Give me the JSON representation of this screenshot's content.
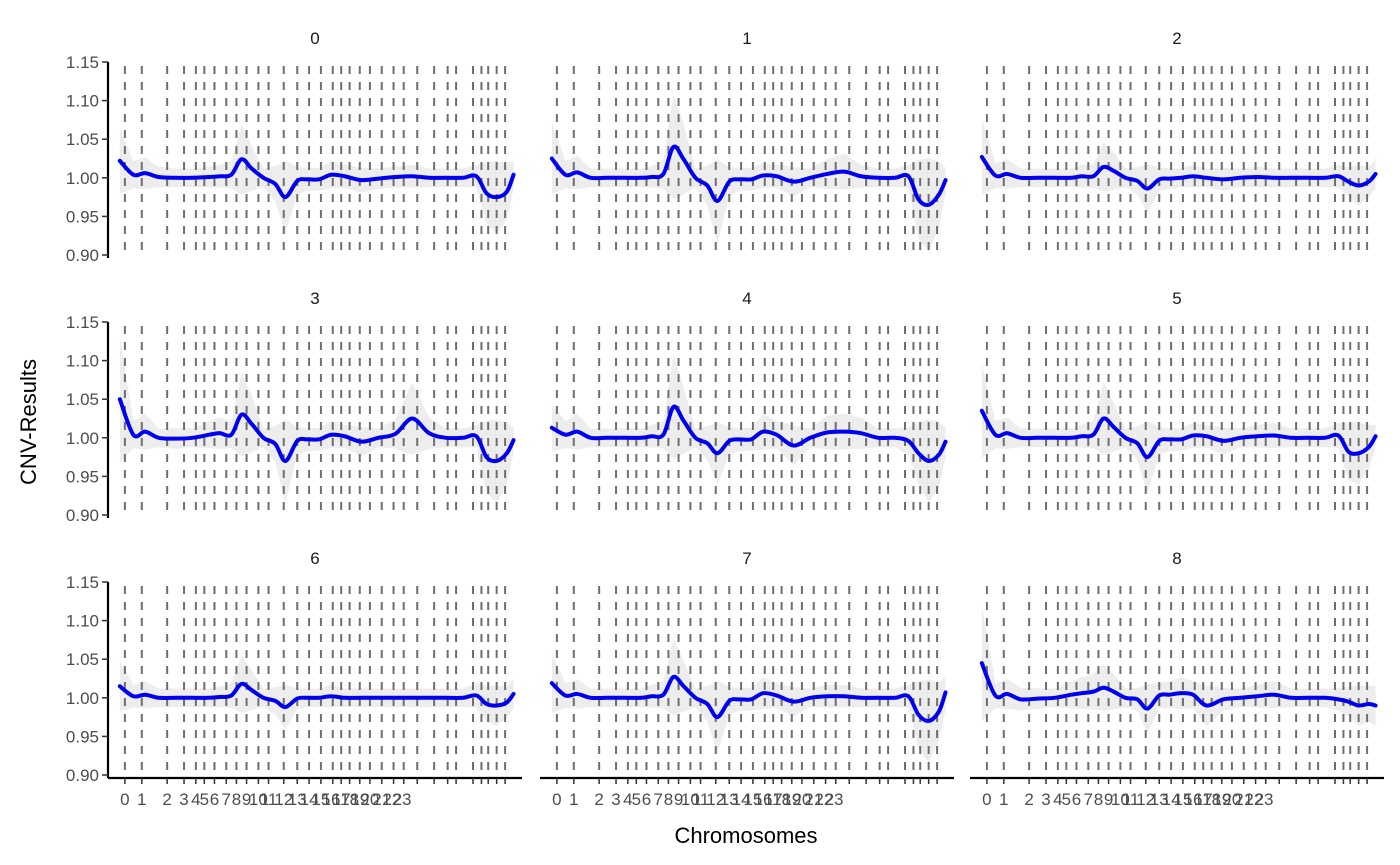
{
  "chart_data": {
    "type": "line",
    "xlabel": "Chromosomes",
    "ylabel": "CNV-Results",
    "ylim": [
      0.9,
      1.15
    ],
    "yticks": [
      0.9,
      0.95,
      1.0,
      1.05,
      1.1,
      1.15
    ],
    "ytick_labels": [
      "0.90",
      "0.95",
      "1.00",
      "1.05",
      "1.10",
      "1.15"
    ],
    "xlim": [
      -1,
      23.5
    ],
    "xtick_positions": [
      0,
      1,
      2.5,
      3.5,
      4.2,
      4.7,
      5.3,
      6,
      6.6,
      7.2,
      7.9,
      8.5,
      9.4,
      10.2,
      10.9,
      11.6,
      12.3,
      12.8,
      13.3,
      13.9,
      14.5,
      15.2,
      15.9,
      16.5,
      17.3,
      18.3,
      19.1,
      19.6,
      20.6,
      21.1,
      21.5,
      22.0,
      22.5
    ],
    "xtick_labels": [
      "0",
      "1",
      "2",
      "3",
      "4",
      "5",
      "6",
      "7",
      "8",
      "9",
      "10",
      "11",
      "12",
      "13",
      "14",
      "15",
      "16",
      "17",
      "18",
      "19",
      "20",
      "21",
      "22",
      "23"
    ],
    "xtick_label_positions": [
      0,
      1,
      2.5,
      3.5,
      4.2,
      4.7,
      5.3,
      6,
      6.6,
      7.2,
      7.9,
      8.5,
      9.4,
      10.2,
      10.9,
      11.6,
      12.2,
      12.8,
      13.3,
      13.9,
      14.5,
      15.2,
      15.8,
      16.4
    ],
    "vline_x": [
      0,
      1,
      2.5,
      3.5,
      4.2,
      4.7,
      5.3,
      6,
      6.6,
      7.2,
      7.9,
      8.5,
      9.4,
      10.2,
      10.9,
      11.6,
      12.3,
      12.8,
      13.3,
      13.9,
      14.5,
      15.2,
      15.9,
      16.5,
      17.3,
      18.3,
      19.1,
      19.6,
      20.6,
      21.1,
      21.5,
      22.0,
      22.5
    ],
    "colors": {
      "line": "#0000ee",
      "vline": "#6e6e6e",
      "band": "#bdbdbd",
      "axis": "#000000"
    },
    "panels": [
      {
        "title": "0",
        "x": [
          -0.3,
          0.5,
          1.2,
          2,
          3,
          4,
          5,
          5.6,
          6.3,
          6.9,
          7.5,
          8.2,
          8.9,
          9.5,
          10.2,
          10.8,
          11.5,
          12.2,
          13,
          14,
          15,
          16,
          17,
          18,
          19,
          20,
          20.8,
          21.4,
          22,
          22.6,
          23
        ],
        "y": [
          1.022,
          1.004,
          1.006,
          1.001,
          1.0,
          1.0,
          1.001,
          1.002,
          1.004,
          1.024,
          1.012,
          1.0,
          0.992,
          0.975,
          0.996,
          0.998,
          0.998,
          1.004,
          1.002,
          0.997,
          0.999,
          1.001,
          1.002,
          1.0,
          1.0,
          1.0,
          1.002,
          0.98,
          0.975,
          0.982,
          1.004
        ]
      },
      {
        "title": "1",
        "x": [
          -0.3,
          0.5,
          1.2,
          2,
          3,
          4,
          5,
          5.6,
          6.3,
          6.9,
          7.5,
          8.2,
          8.9,
          9.5,
          10.2,
          10.8,
          11.5,
          12.2,
          13,
          14,
          15,
          16,
          17,
          18,
          19,
          20,
          20.8,
          21.4,
          22,
          22.6,
          23
        ],
        "y": [
          1.025,
          1.004,
          1.007,
          1.0,
          1.0,
          1.0,
          1.0,
          1.001,
          1.005,
          1.04,
          1.024,
          1.0,
          0.99,
          0.97,
          0.995,
          0.998,
          0.998,
          1.003,
          1.002,
          0.995,
          1.0,
          1.005,
          1.008,
          1.002,
          1.0,
          1.0,
          1.002,
          0.972,
          0.965,
          0.978,
          0.997
        ]
      },
      {
        "title": "2",
        "x": [
          -0.3,
          0.5,
          1.2,
          2,
          3,
          4,
          5,
          5.6,
          6.3,
          6.9,
          7.5,
          8.2,
          8.9,
          9.5,
          10.2,
          10.8,
          11.5,
          12.2,
          13,
          14,
          15,
          16,
          17,
          18,
          19,
          20,
          20.8,
          21.4,
          22,
          22.6,
          23
        ],
        "y": [
          1.027,
          1.003,
          1.005,
          1.0,
          1.0,
          1.0,
          1.0,
          1.002,
          1.002,
          1.014,
          1.009,
          1.0,
          0.996,
          0.986,
          0.998,
          0.999,
          1.0,
          1.002,
          1.0,
          0.998,
          1.0,
          1.001,
          1.0,
          1.0,
          1.0,
          1.0,
          1.002,
          0.995,
          0.99,
          0.995,
          1.005
        ]
      },
      {
        "title": "3",
        "x": [
          -0.3,
          0.5,
          1.2,
          2,
          3,
          4,
          5,
          5.6,
          6.3,
          6.9,
          7.5,
          8.2,
          8.9,
          9.5,
          10.2,
          10.8,
          11.5,
          12.2,
          13,
          14,
          15,
          16,
          17,
          18,
          19,
          20,
          20.8,
          21.4,
          22,
          22.6,
          23
        ],
        "y": [
          1.05,
          1.004,
          1.008,
          1.0,
          0.999,
          1.0,
          1.004,
          1.006,
          1.004,
          1.03,
          1.018,
          1.0,
          0.992,
          0.97,
          0.996,
          0.998,
          0.998,
          1.004,
          1.002,
          0.995,
          1.0,
          1.005,
          1.025,
          1.006,
          1.0,
          1.0,
          1.002,
          0.975,
          0.97,
          0.98,
          0.997
        ]
      },
      {
        "title": "4",
        "x": [
          -0.3,
          0.5,
          1.2,
          2,
          3,
          4,
          5,
          5.6,
          6.3,
          6.9,
          7.5,
          8.2,
          8.9,
          9.5,
          10.2,
          10.8,
          11.5,
          12.2,
          13,
          14,
          15,
          16,
          17,
          18,
          19,
          20,
          20.8,
          21.4,
          22,
          22.6,
          23
        ],
        "y": [
          1.013,
          1.004,
          1.008,
          1.0,
          1.0,
          1.0,
          1.0,
          1.002,
          1.004,
          1.04,
          1.022,
          1.0,
          0.993,
          0.98,
          0.996,
          0.998,
          0.998,
          1.008,
          1.004,
          0.99,
          1.0,
          1.007,
          1.008,
          1.006,
          1.0,
          1.0,
          0.996,
          0.98,
          0.97,
          0.978,
          0.995
        ]
      },
      {
        "title": "5",
        "x": [
          -0.3,
          0.5,
          1.2,
          2,
          3,
          4,
          5,
          5.6,
          6.3,
          6.9,
          7.5,
          8.2,
          8.9,
          9.5,
          10.2,
          10.8,
          11.5,
          12.2,
          13,
          14,
          15,
          16,
          17,
          18,
          19,
          20,
          20.8,
          21.4,
          22,
          22.6,
          23
        ],
        "y": [
          1.035,
          1.004,
          1.006,
          1.0,
          1.0,
          1.0,
          1.0,
          1.002,
          1.004,
          1.025,
          1.014,
          1.0,
          0.993,
          0.975,
          0.996,
          0.998,
          0.998,
          1.003,
          1.002,
          0.996,
          1.0,
          1.002,
          1.003,
          1.0,
          1.0,
          1.0,
          1.003,
          0.982,
          0.98,
          0.988,
          1.002
        ]
      },
      {
        "title": "6",
        "x": [
          -0.3,
          0.5,
          1.2,
          2,
          3,
          4,
          5,
          5.6,
          6.3,
          6.9,
          7.5,
          8.2,
          8.9,
          9.5,
          10.2,
          10.8,
          11.5,
          12.2,
          13,
          14,
          15,
          16,
          17,
          18,
          19,
          20,
          20.8,
          21.4,
          22,
          22.6,
          23
        ],
        "y": [
          1.015,
          1.002,
          1.004,
          1.0,
          1.0,
          1.0,
          1.0,
          1.001,
          1.003,
          1.018,
          1.01,
          1.0,
          0.996,
          0.988,
          0.999,
          1.0,
          1.0,
          1.002,
          1.0,
          1.0,
          1.0,
          1.0,
          1.0,
          1.0,
          1.0,
          1.0,
          1.003,
          0.992,
          0.99,
          0.994,
          1.005
        ]
      },
      {
        "title": "7",
        "x": [
          -0.3,
          0.5,
          1.2,
          2,
          3,
          4,
          5,
          5.6,
          6.3,
          6.9,
          7.5,
          8.2,
          8.9,
          9.5,
          10.2,
          10.8,
          11.5,
          12.2,
          13,
          14,
          15,
          16,
          17,
          18,
          19,
          20,
          20.8,
          21.4,
          22,
          22.6,
          23
        ],
        "y": [
          1.019,
          1.003,
          1.005,
          1.0,
          1.0,
          1.0,
          1.0,
          1.002,
          1.004,
          1.027,
          1.015,
          1.0,
          0.992,
          0.975,
          0.996,
          0.998,
          0.998,
          1.006,
          1.003,
          0.995,
          1.0,
          1.002,
          1.002,
          1.0,
          1.0,
          1.0,
          1.002,
          0.978,
          0.97,
          0.982,
          1.007
        ]
      },
      {
        "title": "8",
        "x": [
          -0.3,
          0.5,
          1.2,
          2,
          3,
          4,
          5,
          5.6,
          6.3,
          6.9,
          7.5,
          8.2,
          8.9,
          9.5,
          10.2,
          10.8,
          11.5,
          12.2,
          13,
          14,
          15,
          16,
          17,
          18,
          19,
          20,
          20.8,
          21.4,
          22,
          22.6,
          23
        ],
        "y": [
          1.045,
          1.003,
          1.005,
          0.998,
          0.999,
          1.0,
          1.004,
          1.006,
          1.008,
          1.013,
          1.008,
          1.0,
          0.998,
          0.986,
          1.003,
          1.004,
          1.006,
          1.004,
          0.99,
          0.998,
          1.0,
          1.002,
          1.004,
          1.0,
          1.0,
          1.0,
          0.998,
          0.995,
          0.99,
          0.992,
          0.99
        ]
      }
    ]
  }
}
